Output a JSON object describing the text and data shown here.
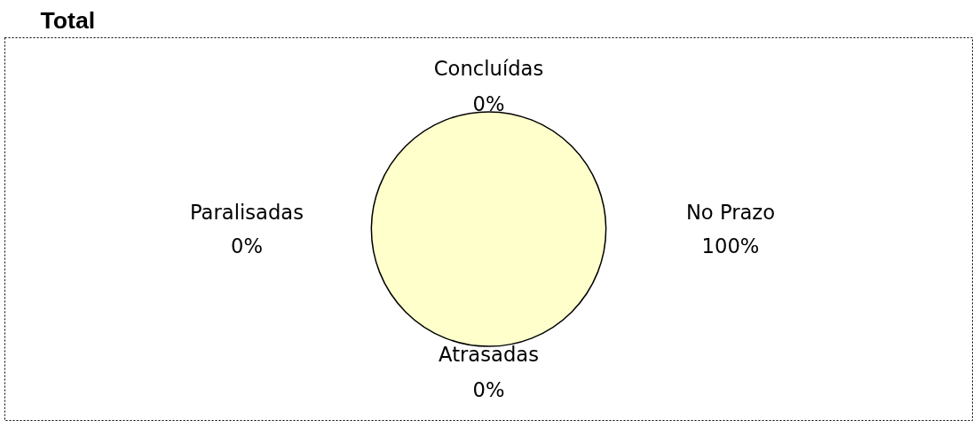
{
  "chart_data": {
    "type": "pie",
    "title": "Total",
    "categories": [
      "Concluídas",
      "No Prazo",
      "Atrasadas",
      "Paralisadas"
    ],
    "values": [
      0,
      100,
      0,
      0
    ],
    "colors": [
      "#9999ff",
      "#ffffcc",
      "#808060",
      "#993366"
    ],
    "value_labels": [
      "0%",
      "100%",
      "0%",
      "0%"
    ]
  }
}
